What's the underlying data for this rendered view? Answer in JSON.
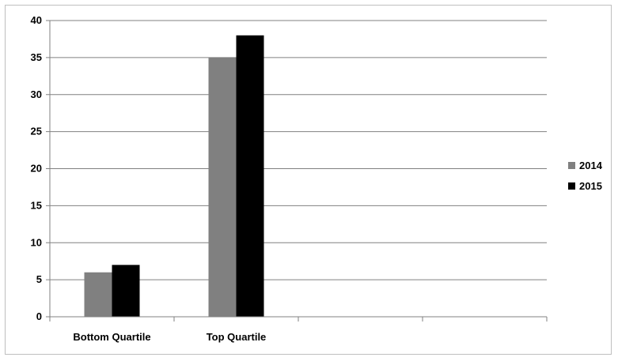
{
  "chart_data": {
    "type": "bar",
    "categories": [
      "Bottom Quartile",
      "Top Quartile",
      "",
      ""
    ],
    "series": [
      {
        "name": "2014",
        "values": [
          6,
          35,
          null,
          null
        ],
        "color": "#808080"
      },
      {
        "name": "2015",
        "values": [
          7,
          38,
          null,
          null
        ],
        "color": "#000000"
      }
    ],
    "ylim": [
      0,
      40
    ],
    "yticks": [
      0,
      5,
      10,
      15,
      20,
      25,
      30,
      35,
      40
    ],
    "grid": true,
    "legend_position": "right",
    "gridline_color": "#808080",
    "axis_color": "#808080"
  }
}
